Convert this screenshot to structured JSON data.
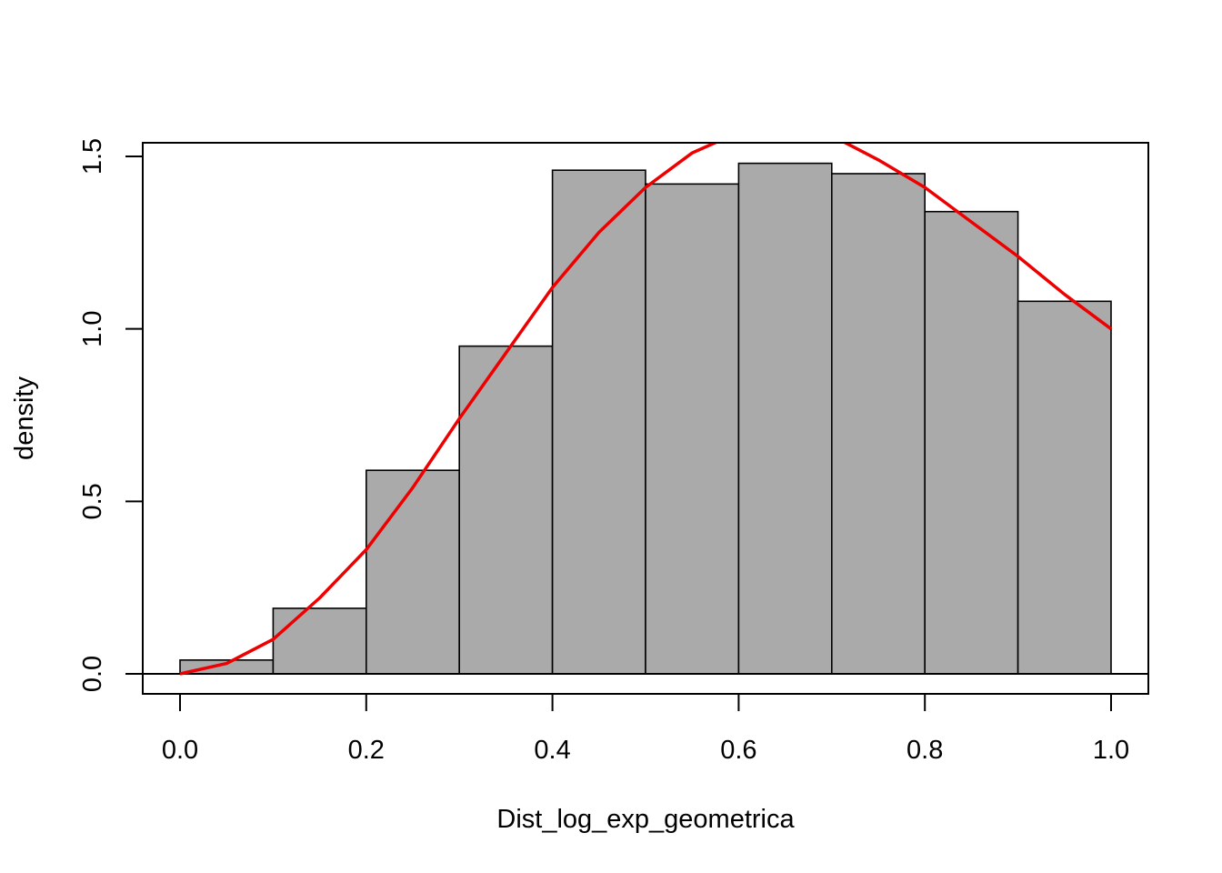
{
  "chart_data": {
    "type": "bar",
    "title": "",
    "xlabel": "Dist_log_exp_geometrica",
    "ylabel": "density",
    "xlim": [
      0.0,
      1.0
    ],
    "ylim": [
      0.0,
      1.5
    ],
    "x_ticks": [
      "0.0",
      "0.2",
      "0.4",
      "0.6",
      "0.8",
      "1.0"
    ],
    "y_ticks": [
      "0.0",
      "0.5",
      "1.0",
      "1.5"
    ],
    "bar_color": "#aaaaaa",
    "bar_edge_color": "#000000",
    "bins": [
      {
        "start": 0.0,
        "end": 0.1,
        "value": 0.04
      },
      {
        "start": 0.1,
        "end": 0.2,
        "value": 0.19
      },
      {
        "start": 0.2,
        "end": 0.3,
        "value": 0.59
      },
      {
        "start": 0.3,
        "end": 0.4,
        "value": 0.95
      },
      {
        "start": 0.4,
        "end": 0.5,
        "value": 1.46
      },
      {
        "start": 0.5,
        "end": 0.6,
        "value": 1.42
      },
      {
        "start": 0.6,
        "end": 0.7,
        "value": 1.48
      },
      {
        "start": 0.7,
        "end": 0.8,
        "value": 1.45
      },
      {
        "start": 0.8,
        "end": 0.9,
        "value": 1.34
      },
      {
        "start": 0.9,
        "end": 1.0,
        "value": 1.08
      }
    ],
    "density_curve": {
      "color": "#ee0000",
      "x": [
        0.0,
        0.05,
        0.1,
        0.15,
        0.2,
        0.25,
        0.3,
        0.35,
        0.4,
        0.45,
        0.5,
        0.55,
        0.6,
        0.65,
        0.7,
        0.75,
        0.8,
        0.85,
        0.9,
        0.95,
        1.0
      ],
      "y": [
        0.0,
        0.03,
        0.1,
        0.22,
        0.36,
        0.54,
        0.74,
        0.93,
        1.12,
        1.28,
        1.41,
        1.51,
        1.57,
        1.59,
        1.56,
        1.49,
        1.41,
        1.31,
        1.21,
        1.1,
        1.0
      ]
    }
  }
}
